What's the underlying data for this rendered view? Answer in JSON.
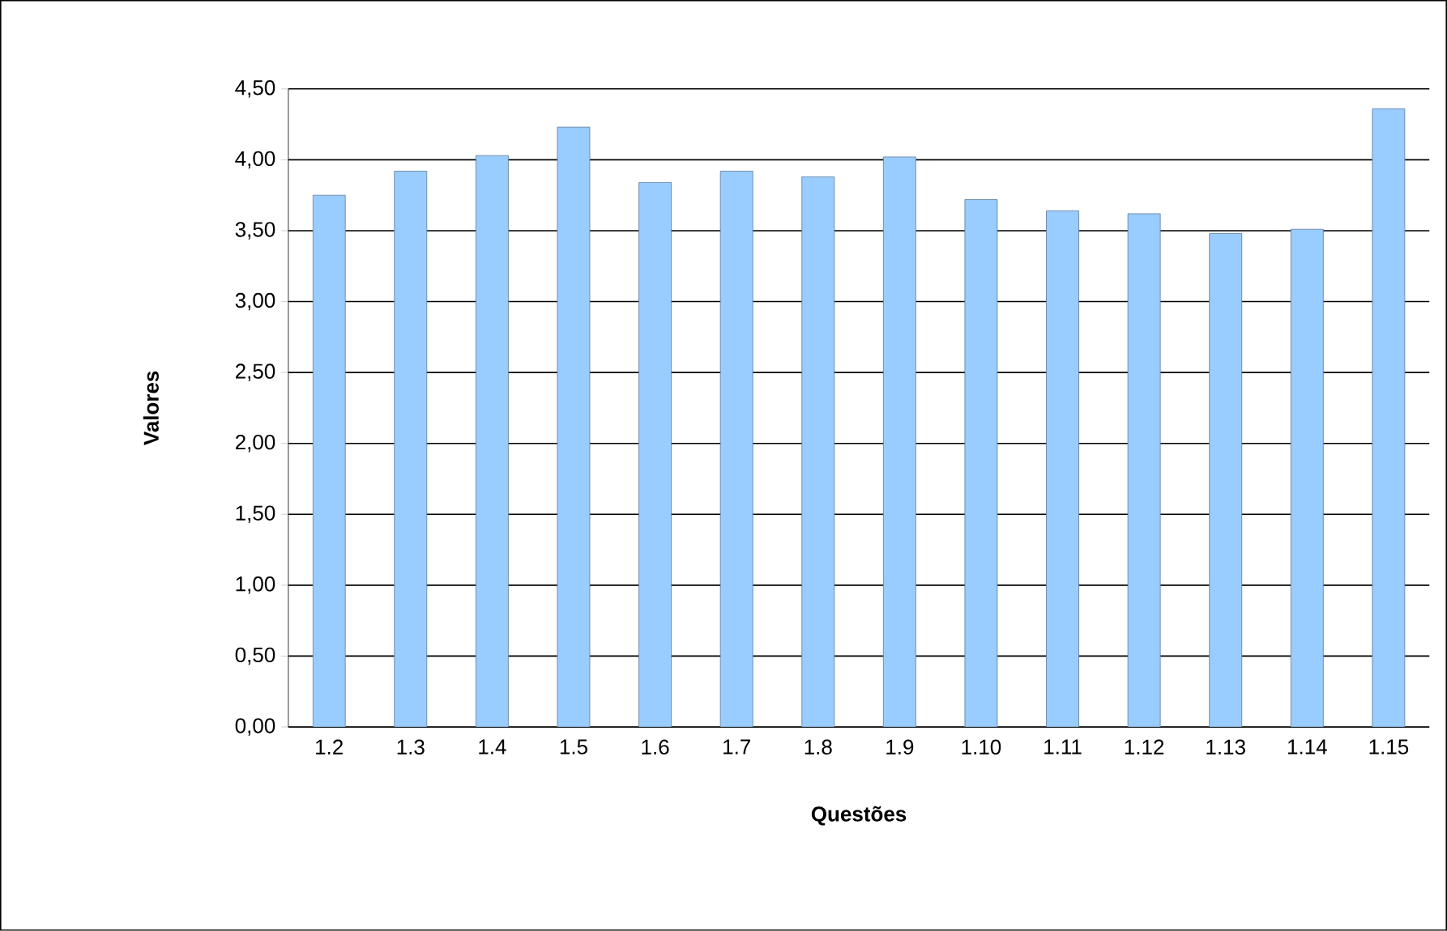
{
  "chart_data": {
    "type": "bar",
    "xlabel": "Questões",
    "ylabel": "Valores",
    "categories": [
      "1.2",
      "1.3",
      "1.4",
      "1.5",
      "1.6",
      "1.7",
      "1.8",
      "1.9",
      "1.10",
      "1.11",
      "1.12",
      "1.13",
      "1.14",
      "1.15"
    ],
    "values": [
      3.75,
      3.92,
      4.03,
      4.23,
      3.84,
      3.92,
      3.88,
      4.02,
      3.72,
      3.64,
      3.62,
      3.48,
      3.51,
      4.36
    ],
    "color": "#99ccff",
    "ylim": [
      0,
      4.5
    ],
    "yticks": [
      {
        "value": 0,
        "label": "0,00"
      },
      {
        "value": 0.5,
        "label": "0,50"
      },
      {
        "value": 1,
        "label": "1,00"
      },
      {
        "value": 1.5,
        "label": "1,50"
      },
      {
        "value": 2,
        "label": "2,00"
      },
      {
        "value": 2.5,
        "label": "2,50"
      },
      {
        "value": 3,
        "label": "3,00"
      },
      {
        "value": 3.5,
        "label": "3,50"
      },
      {
        "value": 4,
        "label": "4,00"
      },
      {
        "value": 4.5,
        "label": "4,50"
      }
    ],
    "grid": "y"
  }
}
